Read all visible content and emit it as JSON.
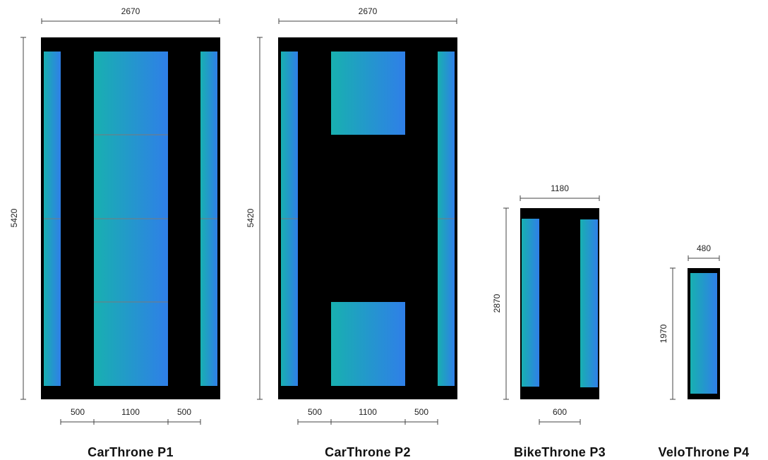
{
  "colors": {
    "frame": "#000000",
    "panel_gradient_start": "#18b0b0",
    "panel_gradient_end": "#2f7fe8",
    "seam": "#7a7a7a",
    "dimension_line": "#444444"
  },
  "units": [
    {
      "title": "CarThrone P1",
      "width_label": "2670",
      "height_label": "5420",
      "bottom_labels": [
        "500",
        "1100",
        "500"
      ]
    },
    {
      "title": "CarThrone P2",
      "width_label": "2670",
      "height_label": "5420",
      "bottom_labels": [
        "500",
        "1100",
        "500"
      ]
    },
    {
      "title": "BikeThrone P3",
      "width_label": "1180",
      "height_label": "2870",
      "bottom_labels": [
        "600"
      ]
    },
    {
      "title": "VeloThrone P4",
      "width_label": "480",
      "height_label": "1970",
      "bottom_labels": []
    }
  ]
}
